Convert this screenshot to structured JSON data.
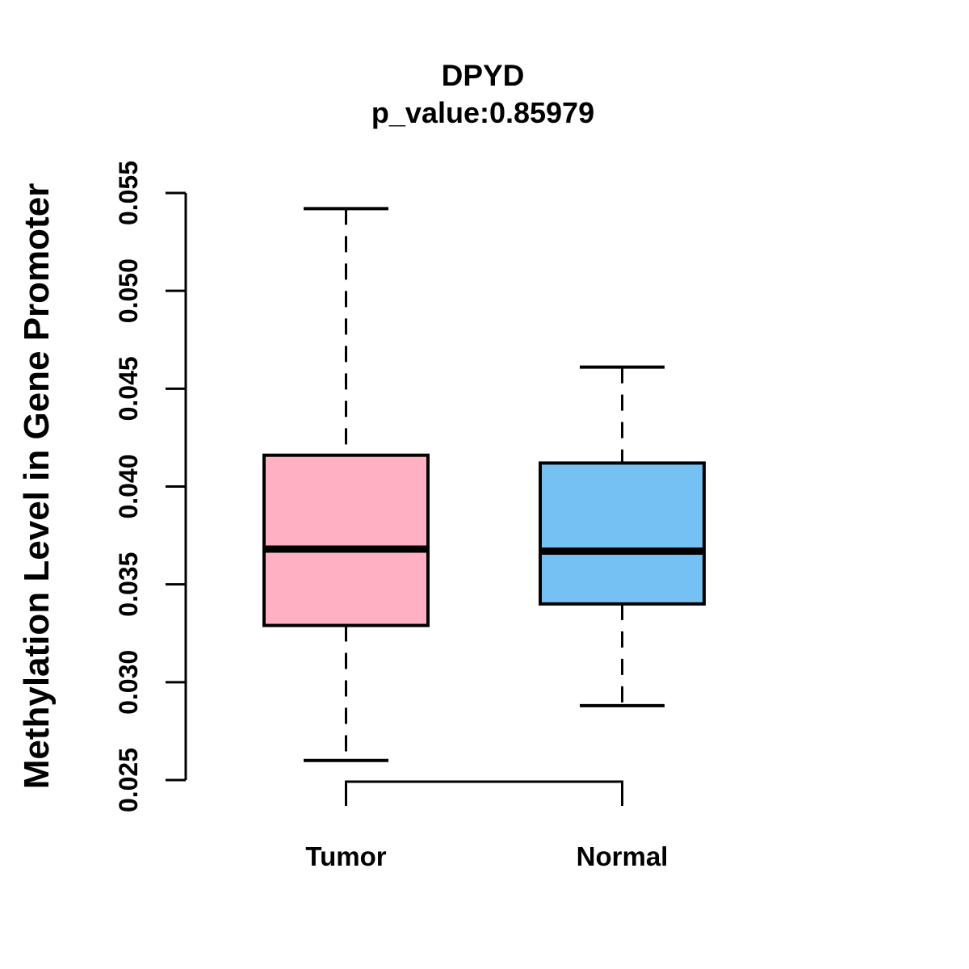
{
  "figure": {
    "background": "#FFFFFF",
    "axis_color": "#000000"
  },
  "chart_data": {
    "type": "boxplot",
    "title": "DPYD",
    "subtitle": "p_value:0.85979",
    "ylabel": "Methylation Level in Gene Promoter",
    "xlabel": "",
    "ylim": [
      0.025,
      0.055
    ],
    "yticks": [
      0.025,
      0.03,
      0.035,
      0.04,
      0.045,
      0.05,
      0.055
    ],
    "ytick_labels": [
      "0.025",
      "0.030",
      "0.035",
      "0.040",
      "0.045",
      "0.050",
      "0.055"
    ],
    "categories": [
      "Tumor",
      "Normal"
    ],
    "grid": false,
    "legend": "none",
    "whisker_style": "dashed",
    "stroke_color": "#000000",
    "series": [
      {
        "name": "Tumor",
        "color": "#FFB0C2",
        "whisker_low": 0.026,
        "q1": 0.0329,
        "median": 0.0368,
        "q3": 0.0416,
        "whisker_high": 0.0542
      },
      {
        "name": "Normal",
        "color": "#76C1F4",
        "whisker_low": 0.0288,
        "q1": 0.034,
        "median": 0.0367,
        "q3": 0.0412,
        "whisker_high": 0.0461
      }
    ]
  }
}
